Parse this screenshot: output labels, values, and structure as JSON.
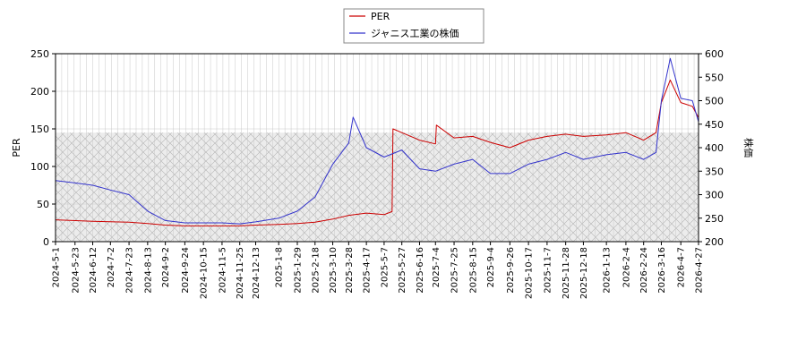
{
  "chart_data": {
    "type": "line",
    "legend": {
      "placement": "top-center",
      "entries": [
        {
          "name": "PER",
          "color": "#cc0000"
        },
        {
          "name": "ジャニス工業の株価",
          "color": "#3333cc"
        }
      ]
    },
    "y_left": {
      "label": "PER",
      "range": [
        0,
        250
      ],
      "ticks": [
        "0",
        "50",
        "100",
        "150",
        "200",
        "250"
      ]
    },
    "y_right": {
      "label": "株価",
      "range": [
        200,
        600
      ],
      "ticks": [
        "200",
        "250",
        "300",
        "350",
        "400",
        "450",
        "500",
        "550",
        "600"
      ]
    },
    "x": {
      "range": [
        "2024-5-1",
        "2026-4-27"
      ],
      "tick_labels": [
        "2024-5-1",
        "2024-5-23",
        "2024-6-12",
        "2024-7-2",
        "2024-7-23",
        "2024-8-13",
        "2024-9-2",
        "2024-9-24",
        "2024-10-15",
        "2024-11-5",
        "2024-11-25",
        "2024-12-13",
        "2025-1-8",
        "2025-1-29",
        "2025-2-18",
        "2025-3-10",
        "2025-3-28",
        "2025-4-17",
        "2025-5-7",
        "2025-5-27",
        "2025-6-16",
        "2025-7-4",
        "2025-7-25",
        "2025-8-15",
        "2025-9-4",
        "2025-9-26",
        "2025-10-17",
        "2025-11-7",
        "2025-11-28",
        "2025-12-18",
        "2026-1-13",
        "2026-2-4",
        "2026-2-24",
        "2026-3-16",
        "2026-4-7",
        "2026-4-27"
      ]
    },
    "shaded_band": {
      "from": 0,
      "to": 145,
      "axis": "left"
    },
    "grid": true,
    "series": [
      {
        "name": "PER",
        "axis": "left",
        "color": "#cc0000",
        "points": [
          [
            "2024-5-1",
            29
          ],
          [
            "2024-6-12",
            27
          ],
          [
            "2024-7-23",
            26
          ],
          [
            "2024-8-13",
            24
          ],
          [
            "2024-9-2",
            22
          ],
          [
            "2024-9-24",
            21
          ],
          [
            "2024-10-15",
            21
          ],
          [
            "2024-11-5",
            21
          ],
          [
            "2024-11-25",
            21
          ],
          [
            "2024-12-13",
            22
          ],
          [
            "2025-1-8",
            23
          ],
          [
            "2025-1-29",
            24
          ],
          [
            "2025-2-18",
            26
          ],
          [
            "2025-3-10",
            30
          ],
          [
            "2025-3-28",
            35
          ],
          [
            "2025-4-17",
            38
          ],
          [
            "2025-5-7",
            36
          ],
          [
            "2025-5-16",
            40
          ],
          [
            "2025-5-17",
            150
          ],
          [
            "2025-5-27",
            145
          ],
          [
            "2025-6-16",
            135
          ],
          [
            "2025-7-4",
            130
          ],
          [
            "2025-7-5",
            155
          ],
          [
            "2025-7-25",
            138
          ],
          [
            "2025-8-15",
            140
          ],
          [
            "2025-9-4",
            132
          ],
          [
            "2025-9-26",
            125
          ],
          [
            "2025-10-17",
            135
          ],
          [
            "2025-11-7",
            140
          ],
          [
            "2025-11-28",
            143
          ],
          [
            "2025-12-18",
            140
          ],
          [
            "2026-1-13",
            142
          ],
          [
            "2026-2-4",
            145
          ],
          [
            "2026-2-24",
            135
          ],
          [
            "2026-3-10",
            145
          ],
          [
            "2026-3-16",
            185
          ],
          [
            "2026-3-26",
            215
          ],
          [
            "2026-4-7",
            185
          ],
          [
            "2026-4-20",
            180
          ],
          [
            "2026-4-27",
            165
          ]
        ]
      },
      {
        "name": "ジャニス工業の株価",
        "axis": "right",
        "color": "#3333cc",
        "points": [
          [
            "2024-5-1",
            330
          ],
          [
            "2024-5-23",
            325
          ],
          [
            "2024-6-12",
            320
          ],
          [
            "2024-7-2",
            310
          ],
          [
            "2024-7-23",
            300
          ],
          [
            "2024-8-13",
            265
          ],
          [
            "2024-9-2",
            245
          ],
          [
            "2024-9-24",
            240
          ],
          [
            "2024-10-15",
            240
          ],
          [
            "2024-11-5",
            240
          ],
          [
            "2024-11-25",
            238
          ],
          [
            "2024-12-13",
            242
          ],
          [
            "2025-1-8",
            250
          ],
          [
            "2025-1-29",
            265
          ],
          [
            "2025-2-18",
            295
          ],
          [
            "2025-3-10",
            365
          ],
          [
            "2025-3-28",
            410
          ],
          [
            "2025-4-2",
            465
          ],
          [
            "2025-4-17",
            400
          ],
          [
            "2025-5-7",
            380
          ],
          [
            "2025-5-27",
            395
          ],
          [
            "2025-6-16",
            355
          ],
          [
            "2025-7-4",
            350
          ],
          [
            "2025-7-25",
            365
          ],
          [
            "2025-8-15",
            375
          ],
          [
            "2025-9-4",
            345
          ],
          [
            "2025-9-26",
            345
          ],
          [
            "2025-10-17",
            365
          ],
          [
            "2025-11-7",
            375
          ],
          [
            "2025-11-28",
            390
          ],
          [
            "2025-12-18",
            375
          ],
          [
            "2026-1-13",
            385
          ],
          [
            "2026-2-4",
            390
          ],
          [
            "2026-2-24",
            375
          ],
          [
            "2026-3-10",
            390
          ],
          [
            "2026-3-16",
            500
          ],
          [
            "2026-3-26",
            590
          ],
          [
            "2026-4-7",
            505
          ],
          [
            "2026-4-20",
            500
          ],
          [
            "2026-4-27",
            455
          ]
        ]
      }
    ]
  }
}
